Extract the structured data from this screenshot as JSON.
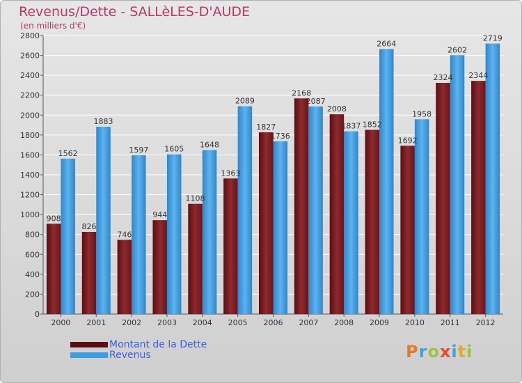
{
  "chart_data": {
    "type": "bar",
    "title": "Revenus/Dette - SALLèLES-D'AUDE",
    "subtitle": "(en milliers d'€)",
    "categories": [
      "2000",
      "2001",
      "2002",
      "2003",
      "2004",
      "2005",
      "2006",
      "2007",
      "2008",
      "2009",
      "2010",
      "2011",
      "2012"
    ],
    "series": [
      {
        "name": "Montant de la Dette",
        "color": "#7a1a1f",
        "values": [
          908,
          826,
          746,
          944,
          1108,
          1363,
          1827,
          2168,
          2008,
          1852,
          1692,
          2324,
          2344
        ]
      },
      {
        "name": "Revenus",
        "color": "#3e9de0",
        "values": [
          1562,
          1883,
          1597,
          1605,
          1648,
          2089,
          1736,
          2087,
          1837,
          2664,
          1958,
          2602,
          2719
        ]
      }
    ],
    "ylim": [
      0,
      2800
    ],
    "yticks": [
      0,
      200,
      400,
      600,
      800,
      1000,
      1200,
      1400,
      1600,
      1800,
      2000,
      2200,
      2400,
      2600,
      2800
    ],
    "grid": true,
    "legend_position": "bottom-left"
  },
  "logo": {
    "letters": [
      "P",
      "r",
      "o",
      "x",
      "i",
      "t",
      "i"
    ],
    "colors": [
      "#e8792b",
      "#3aa5db",
      "#9bc53d",
      "#e84a2b",
      "#3aa5db",
      "#e8a92b",
      "#9bc53d"
    ]
  }
}
